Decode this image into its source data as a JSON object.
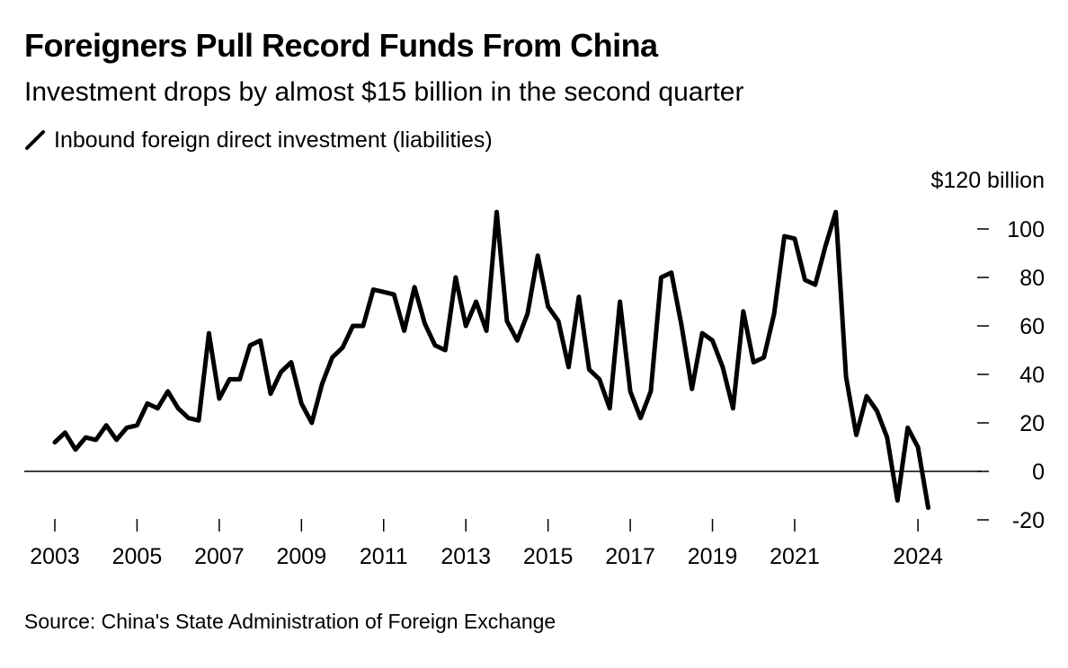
{
  "chart_data": {
    "type": "line",
    "title": "Foreigners Pull Record Funds From China",
    "subtitle": "Investment drops by almost $15 billion in the second quarter",
    "series": [
      {
        "name": "Inbound foreign direct investment (liabilities)",
        "color": "#000000",
        "x": [
          "2003 Q1",
          "2003 Q2",
          "2003 Q3",
          "2003 Q4",
          "2004 Q1",
          "2004 Q2",
          "2004 Q3",
          "2004 Q4",
          "2005 Q1",
          "2005 Q2",
          "2005 Q3",
          "2005 Q4",
          "2006 Q1",
          "2006 Q2",
          "2006 Q3",
          "2006 Q4",
          "2007 Q1",
          "2007 Q2",
          "2007 Q3",
          "2007 Q4",
          "2008 Q1",
          "2008 Q2",
          "2008 Q3",
          "2008 Q4",
          "2009 Q1",
          "2009 Q2",
          "2009 Q3",
          "2009 Q4",
          "2010 Q1",
          "2010 Q2",
          "2010 Q3",
          "2010 Q4",
          "2011 Q1",
          "2011 Q2",
          "2011 Q3",
          "2011 Q4",
          "2012 Q1",
          "2012 Q2",
          "2012 Q3",
          "2012 Q4",
          "2013 Q1",
          "2013 Q2",
          "2013 Q3",
          "2013 Q4",
          "2014 Q1",
          "2014 Q2",
          "2014 Q3",
          "2014 Q4",
          "2015 Q1",
          "2015 Q2",
          "2015 Q3",
          "2015 Q4",
          "2016 Q1",
          "2016 Q2",
          "2016 Q3",
          "2016 Q4",
          "2017 Q1",
          "2017 Q2",
          "2017 Q3",
          "2017 Q4",
          "2018 Q1",
          "2018 Q2",
          "2018 Q3",
          "2018 Q4",
          "2019 Q1",
          "2019 Q2",
          "2019 Q3",
          "2019 Q4",
          "2020 Q1",
          "2020 Q2",
          "2020 Q3",
          "2020 Q4",
          "2021 Q1",
          "2021 Q2",
          "2021 Q3",
          "2021 Q4",
          "2022 Q1",
          "2022 Q2",
          "2022 Q3",
          "2022 Q4",
          "2023 Q1",
          "2023 Q2",
          "2023 Q3",
          "2023 Q4",
          "2024 Q1",
          "2024 Q2"
        ],
        "values": [
          12,
          16,
          9,
          14,
          13,
          19,
          13,
          18,
          19,
          28,
          26,
          33,
          26,
          22,
          21,
          57,
          30,
          38,
          38,
          52,
          54,
          32,
          41,
          45,
          28,
          20,
          36,
          47,
          51,
          60,
          60,
          75,
          74,
          73,
          58,
          76,
          61,
          52,
          50,
          80,
          60,
          70,
          58,
          107,
          62,
          54,
          65,
          89,
          68,
          62,
          43,
          72,
          42,
          38,
          26,
          70,
          33,
          22,
          33,
          80,
          82,
          60,
          34,
          57,
          54,
          43,
          26,
          66,
          45,
          47,
          65,
          97,
          96,
          79,
          77,
          93,
          107,
          39,
          15,
          31,
          25,
          14,
          -12,
          18,
          10,
          -15
        ]
      }
    ],
    "yunit_label": "$120 billion",
    "y_ticks": [
      100,
      80,
      60,
      40,
      20,
      0,
      -20
    ],
    "x_ticks": [
      "2003",
      "2005",
      "2007",
      "2009",
      "2011",
      "2013",
      "2015",
      "2017",
      "2019",
      "2021",
      "2024"
    ],
    "ylim": [
      -20,
      120
    ],
    "zero_line": true,
    "grid": false,
    "legend_position": "top-left",
    "source": "Source: China's State Administration of Foreign Exchange"
  }
}
